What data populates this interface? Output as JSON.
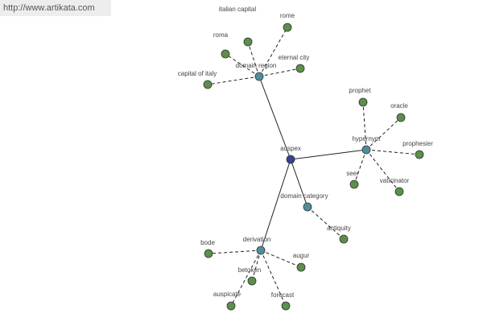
{
  "watermark": "http://www.artikata.com",
  "nodes": [
    {
      "label": "auspex"
    },
    {
      "label": "domain region"
    },
    {
      "label": "hypernym"
    },
    {
      "label": "domain category"
    },
    {
      "label": "derivation"
    },
    {
      "label": "italian capital"
    },
    {
      "label": "rome"
    },
    {
      "label": "roma"
    },
    {
      "label": "eternal city"
    },
    {
      "label": "capital of italy"
    },
    {
      "label": "prophet"
    },
    {
      "label": "oracle"
    },
    {
      "label": "prophesier"
    },
    {
      "label": "seer"
    },
    {
      "label": "vaticinator"
    },
    {
      "label": "antiquity"
    },
    {
      "label": "bode"
    },
    {
      "label": "augur"
    },
    {
      "label": "betoken"
    },
    {
      "label": "auspicate"
    },
    {
      "label": "forecast"
    }
  ]
}
